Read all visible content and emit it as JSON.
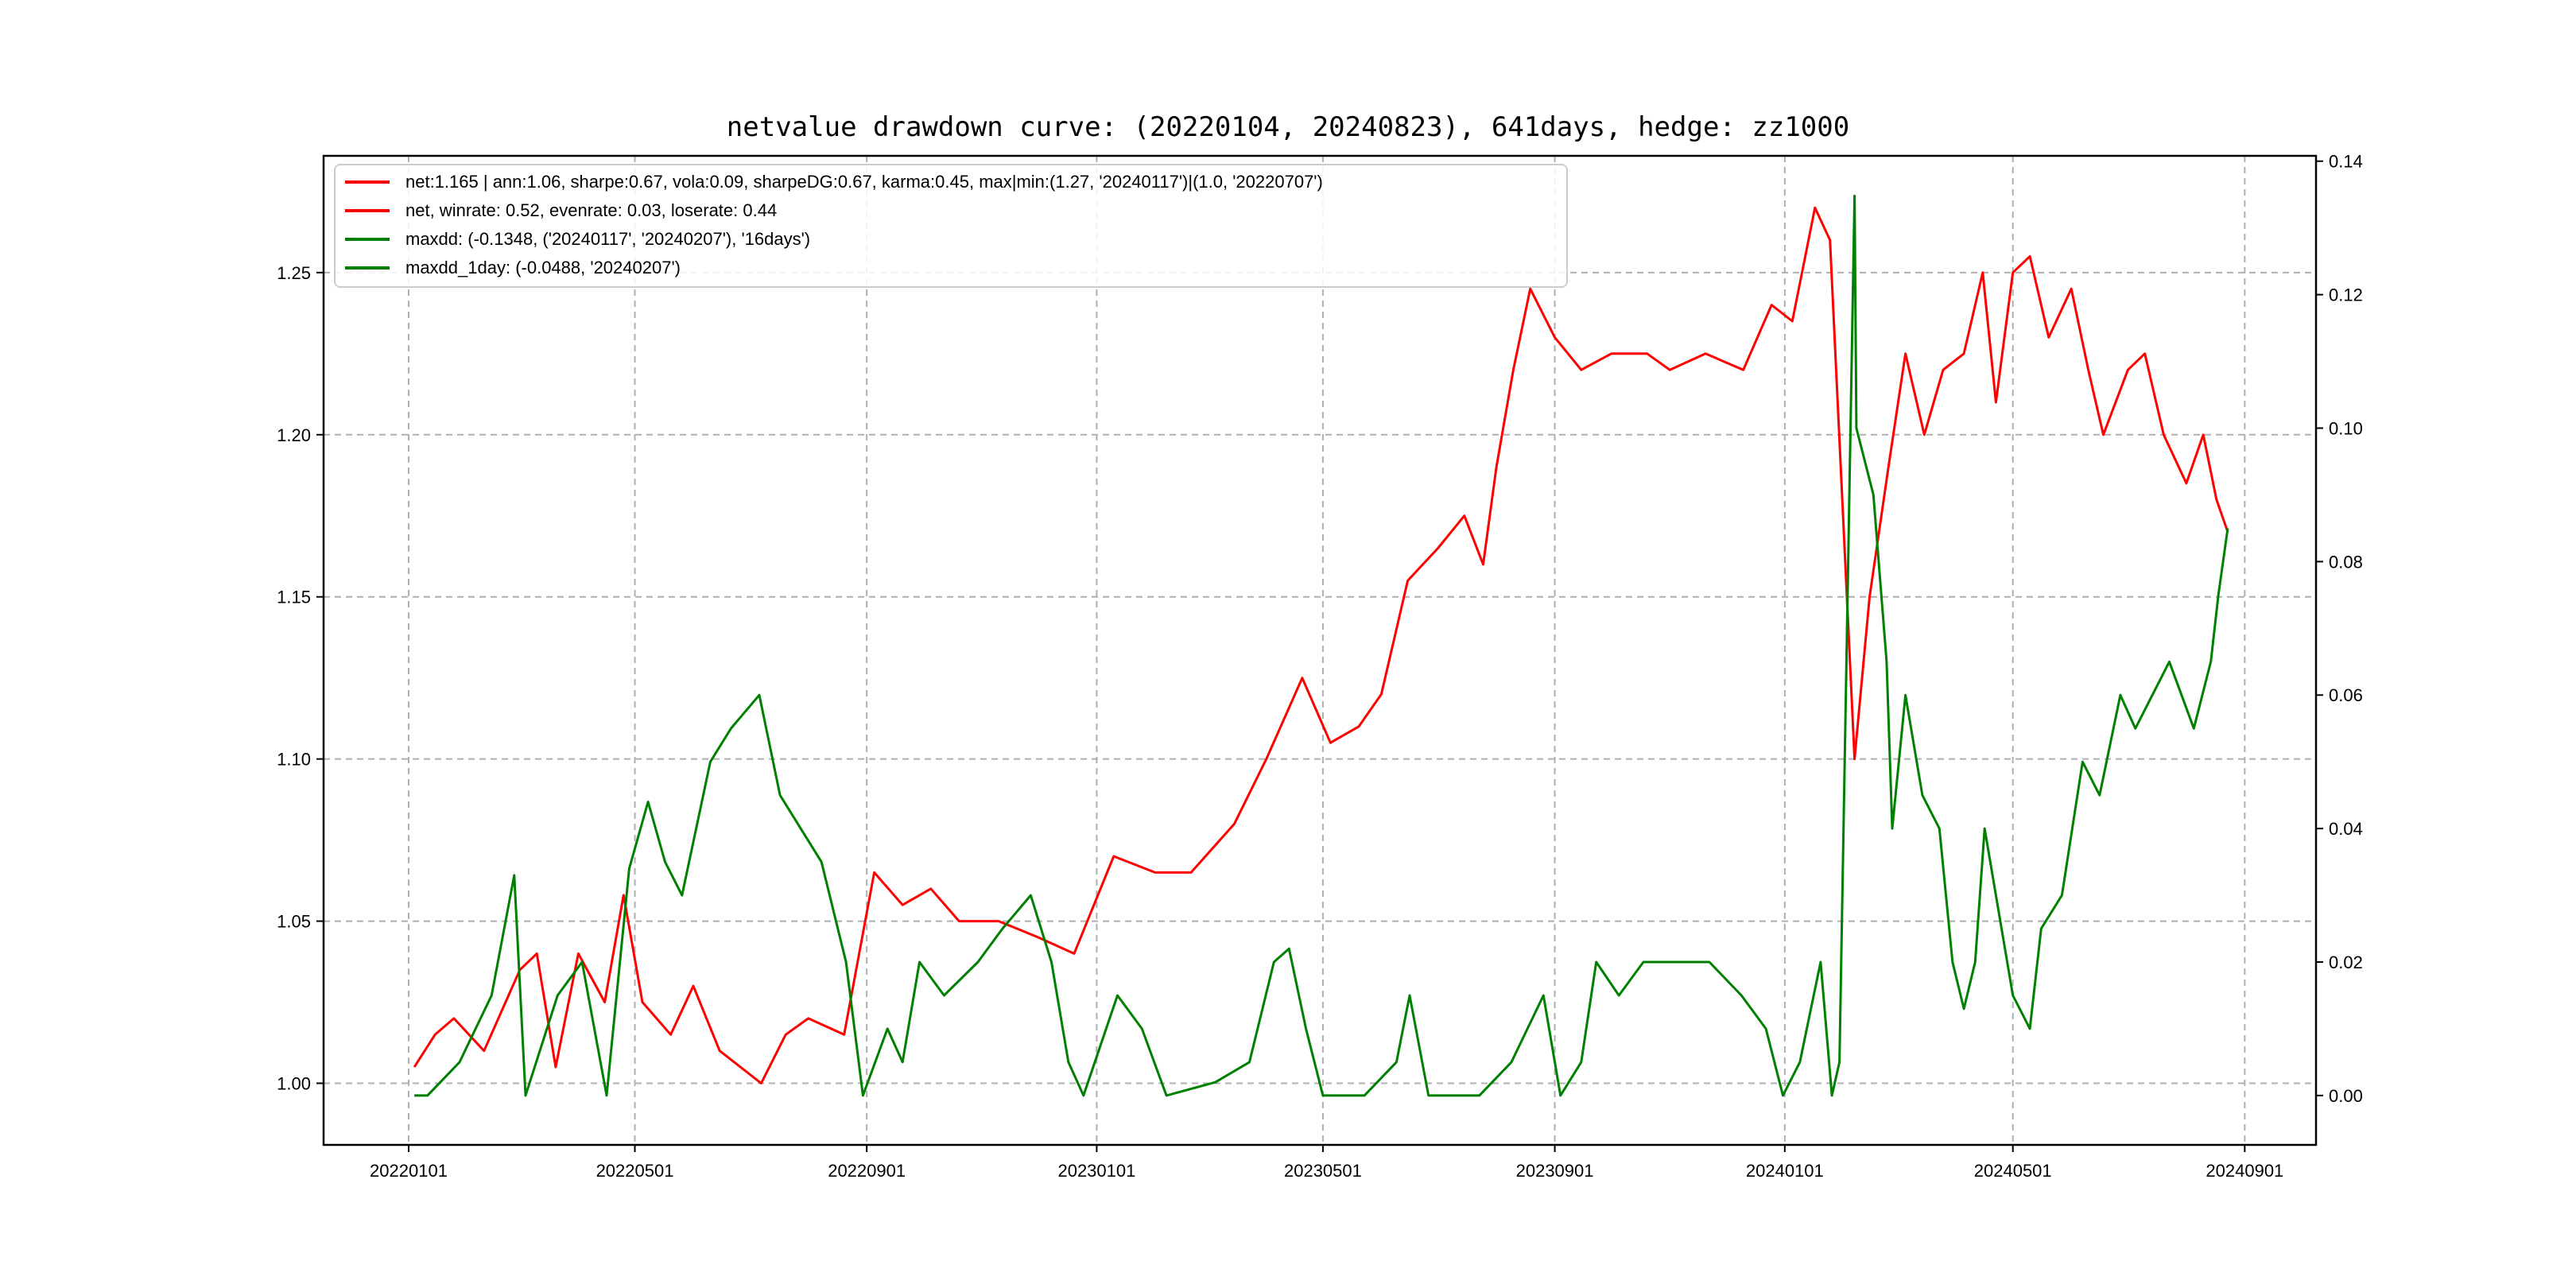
{
  "chart_data": {
    "type": "line",
    "title": "netvalue drawdown curve: (20220104, 20240823), 641days, hedge: zz1000",
    "xlabel": "",
    "ylabel": "",
    "y2label": "",
    "grid": true,
    "legend_position": "top-left",
    "x_ticks": [
      "20220101",
      "20220501",
      "20220901",
      "20230101",
      "20230501",
      "20230901",
      "20240101",
      "20240501",
      "20240901"
    ],
    "y_ticks": [
      "1.00",
      "1.05",
      "1.10",
      "1.15",
      "1.20",
      "1.25"
    ],
    "y_ticks_values": [
      1.0,
      1.05,
      1.1,
      1.15,
      1.2,
      1.25
    ],
    "y2_ticks": [
      "0.00",
      "0.02",
      "0.04",
      "0.06",
      "0.08",
      "0.10",
      "0.12",
      "0.14"
    ],
    "y2_ticks_values": [
      0,
      0.02,
      0.04,
      0.06,
      0.08,
      0.1,
      0.12,
      0.14
    ],
    "ylim": [
      0.981,
      1.286
    ],
    "y2lim": [
      -0.0074,
      0.1408
    ],
    "legend": [
      {
        "label": "net:1.165 | ann:1.06, sharpe:0.67, vola:0.09, sharpeDG:0.67, karma:0.45, max|min:(1.27, '20240117')|(1.0, '20220707')",
        "color": "#ff0000"
      },
      {
        "label": "net, winrate: 0.52, evenrate: 0.03, loserate: 0.44",
        "color": "#ff0000"
      },
      {
        "label": "maxdd: (-0.1348, ('20240117', '20240207'), '16days')",
        "color": "#008000"
      },
      {
        "label": "maxdd_1day: (-0.0488, '20240207')",
        "color": "#008000"
      }
    ],
    "series": [
      {
        "name": "net",
        "axis": "left",
        "color": "#ff0000",
        "x": [
          "20220104",
          "20220115",
          "20220125",
          "20220210",
          "20220301",
          "20220310",
          "20220320",
          "20220401",
          "20220415",
          "20220425",
          "20220505",
          "20220520",
          "20220601",
          "20220615",
          "20220707",
          "20220720",
          "20220801",
          "20220820",
          "20220905",
          "20220920",
          "20221005",
          "20221020",
          "20221110",
          "20221201",
          "20221220",
          "20230110",
          "20230201",
          "20230220",
          "20230315",
          "20230401",
          "20230420",
          "20230505",
          "20230520",
          "20230601",
          "20230615",
          "20230701",
          "20230715",
          "20230725",
          "20230801",
          "20230810",
          "20230819",
          "20230901",
          "20230915",
          "20231001",
          "20231020",
          "20231101",
          "20231120",
          "20231210",
          "20231225",
          "20240105",
          "20240117",
          "20240125",
          "20240207",
          "20240215",
          "20240225",
          "20240305",
          "20240315",
          "20240325",
          "20240405",
          "20240415",
          "20240422",
          "20240501",
          "20240510",
          "20240520",
          "20240601",
          "20240610",
          "20240618",
          "20240701",
          "20240710",
          "20240720",
          "20240801",
          "20240810",
          "20240817",
          "20240823"
        ],
        "values": [
          1.005,
          1.015,
          1.02,
          1.01,
          1.035,
          1.04,
          1.005,
          1.04,
          1.025,
          1.058,
          1.025,
          1.015,
          1.03,
          1.01,
          1.0,
          1.015,
          1.02,
          1.015,
          1.065,
          1.055,
          1.06,
          1.05,
          1.05,
          1.045,
          1.04,
          1.07,
          1.065,
          1.065,
          1.08,
          1.1,
          1.125,
          1.105,
          1.11,
          1.12,
          1.155,
          1.165,
          1.175,
          1.16,
          1.19,
          1.22,
          1.245,
          1.23,
          1.22,
          1.225,
          1.225,
          1.22,
          1.225,
          1.22,
          1.24,
          1.235,
          1.27,
          1.26,
          1.1,
          1.15,
          1.19,
          1.225,
          1.2,
          1.22,
          1.225,
          1.25,
          1.21,
          1.25,
          1.255,
          1.23,
          1.245,
          1.22,
          1.2,
          1.22,
          1.225,
          1.2,
          1.185,
          1.2,
          1.18,
          1.17
        ]
      },
      {
        "name": "maxdd",
        "axis": "right",
        "color": "#008000",
        "x": [
          "20220104",
          "20220111",
          "20220128",
          "20220214",
          "20220226",
          "20220304",
          "20220321",
          "20220403",
          "20220416",
          "20220428",
          "20220508",
          "20220517",
          "20220526",
          "20220610",
          "20220621",
          "20220706",
          "20220717",
          "20220808",
          "20220821",
          "20220830",
          "20220912",
          "20220920",
          "20220929",
          "20221012",
          "20221030",
          "20221112",
          "20221127",
          "20221208",
          "20221217",
          "20221225",
          "20230112",
          "20230125",
          "20230207",
          "20230305",
          "20230323",
          "20230405",
          "20230413",
          "20230422",
          "20230501",
          "20230523",
          "20230609",
          "20230616",
          "20230626",
          "20230723",
          "20230809",
          "20230826",
          "20230904",
          "20230915",
          "20230923",
          "20231005",
          "20231018",
          "20231104",
          "20231122",
          "20231209",
          "20231222",
          "20231231",
          "20240109",
          "20240120",
          "20240126",
          "20240130",
          "20240207",
          "20240208",
          "20240217",
          "20240224",
          "20240227",
          "20240305",
          "20240314",
          "20240323",
          "20240330",
          "20240405",
          "20240411",
          "20240416",
          "20240422",
          "20240501",
          "20240510",
          "20240516",
          "20240527",
          "20240607",
          "20240616",
          "20240627",
          "20240705",
          "20240723",
          "20240805",
          "20240814",
          "20240818",
          "20240823"
        ],
        "values": [
          0.0,
          0.0,
          0.005,
          0.015,
          0.033,
          0.0,
          0.015,
          0.02,
          0.0,
          0.034,
          0.044,
          0.035,
          0.03,
          0.05,
          0.055,
          0.06,
          0.045,
          0.035,
          0.02,
          0.0,
          0.01,
          0.005,
          0.02,
          0.015,
          0.02,
          0.025,
          0.03,
          0.02,
          0.005,
          0.0,
          0.015,
          0.01,
          0.0,
          0.002,
          0.005,
          0.02,
          0.022,
          0.01,
          0.0,
          0.0,
          0.005,
          0.015,
          0.0,
          0.0,
          0.005,
          0.015,
          0.0,
          0.005,
          0.02,
          0.015,
          0.02,
          0.02,
          0.02,
          0.015,
          0.01,
          0.0,
          0.005,
          0.02,
          0.0,
          0.005,
          0.1348,
          0.1,
          0.09,
          0.065,
          0.04,
          0.06,
          0.045,
          0.04,
          0.02,
          0.013,
          0.02,
          0.04,
          0.03,
          0.015,
          0.01,
          0.025,
          0.03,
          0.05,
          0.045,
          0.06,
          0.055,
          0.065,
          0.055,
          0.065,
          0.075,
          0.085
        ]
      }
    ]
  }
}
